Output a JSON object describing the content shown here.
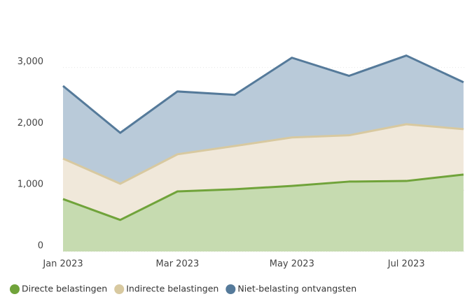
{
  "chart_data": {
    "type": "stacked_area",
    "categories": [
      "Jan 2023",
      null,
      "Mar 2023",
      null,
      "May 2023",
      null,
      "Jul 2023",
      null
    ],
    "series": [
      {
        "name": "Directe belastingen",
        "color": "#70a33a",
        "fill": "#c6dbb0",
        "values": [
          855,
          515,
          980,
          1015,
          1070,
          1140,
          1150,
          1255
        ]
      },
      {
        "name": "Indirecte belastingen",
        "color": "#d8c9a0",
        "fill": "#f0e8da",
        "values": [
          660,
          590,
          605,
          705,
          790,
          755,
          925,
          740
        ]
      },
      {
        "name": "Niet-belasting ontvangsten",
        "color": "#557a9a",
        "fill": "#b9cad9",
        "values": [
          1185,
          830,
          1025,
          835,
          1300,
          970,
          1120,
          765
        ]
      }
    ],
    "ylim": [
      0,
      3600
    ],
    "yticks": [
      0,
      {
        "value": 1000,
        "label": "1,000"
      },
      {
        "value": 2000,
        "label": "2,000"
      },
      {
        "value": 3000,
        "label": "3,000"
      }
    ],
    "grid": true
  }
}
